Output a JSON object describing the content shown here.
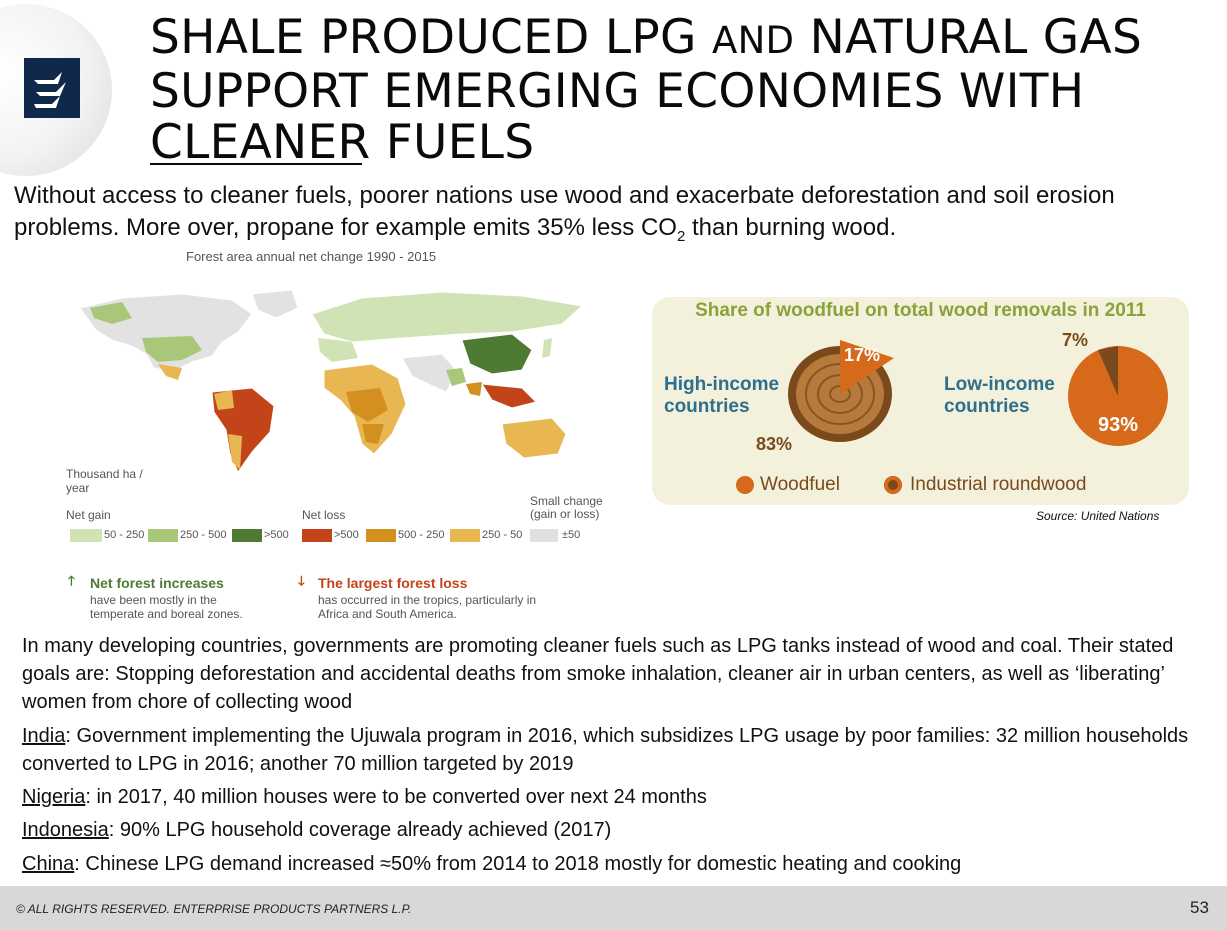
{
  "header": {
    "title_part1": "SHALE PRODUCED LPG ",
    "title_and": "AND",
    "title_part2": " NATURAL GAS SUPPORT EMERGING ECONOMIES WITH CLEANER FUELS"
  },
  "intro": {
    "text_before_sub": "Without access to cleaner fuels, poorer nations use wood and exacerbate deforestation and soil erosion problems.  More over, propane for example emits 35% less CO",
    "sub": "2",
    "text_after_sub": " than burning wood."
  },
  "map": {
    "title": "Forest area annual net change 1990 - 2015",
    "unit": "Thousand ha / year",
    "net_gain_label": "Net gain",
    "net_loss_label": "Net loss",
    "small_change_label": "Small change (gain or loss)",
    "legend": [
      {
        "label": "50 - 250",
        "color": "#cfe3b4"
      },
      {
        "label": "250 - 500",
        "color": "#a9c778"
      },
      {
        "label": ">500",
        "color": "#4f7a34"
      },
      {
        "label": ">500",
        "color": "#c4441a"
      },
      {
        "label": "500 - 250",
        "color": "#d4901e"
      },
      {
        "label": "250 - 50",
        "color": "#e8b752"
      },
      {
        "label": "±50",
        "color": "#e0e0e0"
      }
    ],
    "note_gain_title": "Net forest increases",
    "note_gain_text": "have been mostly in the temperate and boreal zones.",
    "note_loss_title": "The largest forest loss",
    "note_loss_text": "has occurred in the tropics, particularly in Africa and South America.",
    "colors": {
      "gain_arrow": "#4f7a34",
      "loss_arrow": "#c4441a",
      "loss_title": "#c4441a",
      "gain_title": "#4f7a34"
    }
  },
  "woodfuel": {
    "title": "Share of woodfuel on total wood removals in 2011",
    "high_income_label": "High-income countries",
    "low_income_label": "Low-income countries",
    "high_woodfuel_pct": "17%",
    "high_industrial_pct": "83%",
    "low_industrial_pct": "7%",
    "low_woodfuel_pct": "93%",
    "legend_woodfuel": "Woodfuel",
    "legend_industrial": "Industrial roundwood",
    "source": "Source:  United Nations",
    "colors": {
      "woodfuel": "#d7691b",
      "industrial": "#7a4a1c",
      "panel": "#f3f1db",
      "title": "#8aa23a",
      "label": "#2e6e8e"
    }
  },
  "body": {
    "paragraph": "In many developing countries, governments are promoting cleaner fuels such as LPG tanks instead of wood and coal. Their stated goals are: Stopping deforestation and accidental deaths from smoke inhalation, cleaner air in urban centers, as well as ‘liberating’ women from chore of collecting wood",
    "bullets": [
      {
        "country": "India",
        "text": ":  Government implementing the Ujuwala program in 2016, which subsidizes LPG usage by poor families:  32 million households converted to LPG in 2016; another 70 million targeted by 2019"
      },
      {
        "country": "Nigeria",
        "text": ":  in 2017, 40 million houses were to be converted over next 24 months"
      },
      {
        "country": "Indonesia",
        "text": ":  90% LPG household coverage already achieved (2017)"
      },
      {
        "country": "China",
        "text": ":  Chinese LPG demand increased ≈50% from 2014 to 2018 mostly for domestic heating and cooking"
      }
    ]
  },
  "footer": {
    "copyright": "© ALL RIGHTS RESERVED. ENTERPRISE PRODUCTS PARTNERS L.P.",
    "page_number": "53"
  }
}
